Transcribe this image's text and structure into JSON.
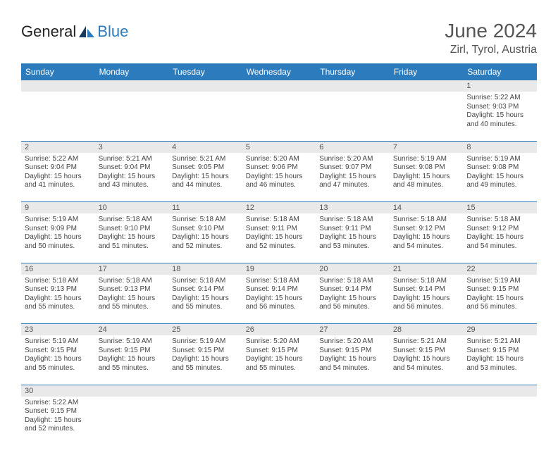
{
  "logo": {
    "text_dark": "General",
    "text_blue": "Blue"
  },
  "title": "June 2024",
  "location": "Zirl, Tyrol, Austria",
  "colors": {
    "header_bg": "#2b7bbd",
    "header_text": "#ffffff",
    "daynum_bg": "#e9e9e9",
    "cell_border": "#2b7bbd",
    "page_bg": "#ffffff",
    "body_text": "#444444",
    "title_text": "#555555"
  },
  "weekdays": [
    "Sunday",
    "Monday",
    "Tuesday",
    "Wednesday",
    "Thursday",
    "Friday",
    "Saturday"
  ],
  "weeks": [
    {
      "nums": [
        "",
        "",
        "",
        "",
        "",
        "",
        "1"
      ],
      "cells": [
        null,
        null,
        null,
        null,
        null,
        null,
        {
          "sunrise": "Sunrise: 5:22 AM",
          "sunset": "Sunset: 9:03 PM",
          "daylight1": "Daylight: 15 hours",
          "daylight2": "and 40 minutes."
        }
      ]
    },
    {
      "nums": [
        "2",
        "3",
        "4",
        "5",
        "6",
        "7",
        "8"
      ],
      "cells": [
        {
          "sunrise": "Sunrise: 5:22 AM",
          "sunset": "Sunset: 9:04 PM",
          "daylight1": "Daylight: 15 hours",
          "daylight2": "and 41 minutes."
        },
        {
          "sunrise": "Sunrise: 5:21 AM",
          "sunset": "Sunset: 9:04 PM",
          "daylight1": "Daylight: 15 hours",
          "daylight2": "and 43 minutes."
        },
        {
          "sunrise": "Sunrise: 5:21 AM",
          "sunset": "Sunset: 9:05 PM",
          "daylight1": "Daylight: 15 hours",
          "daylight2": "and 44 minutes."
        },
        {
          "sunrise": "Sunrise: 5:20 AM",
          "sunset": "Sunset: 9:06 PM",
          "daylight1": "Daylight: 15 hours",
          "daylight2": "and 46 minutes."
        },
        {
          "sunrise": "Sunrise: 5:20 AM",
          "sunset": "Sunset: 9:07 PM",
          "daylight1": "Daylight: 15 hours",
          "daylight2": "and 47 minutes."
        },
        {
          "sunrise": "Sunrise: 5:19 AM",
          "sunset": "Sunset: 9:08 PM",
          "daylight1": "Daylight: 15 hours",
          "daylight2": "and 48 minutes."
        },
        {
          "sunrise": "Sunrise: 5:19 AM",
          "sunset": "Sunset: 9:08 PM",
          "daylight1": "Daylight: 15 hours",
          "daylight2": "and 49 minutes."
        }
      ]
    },
    {
      "nums": [
        "9",
        "10",
        "11",
        "12",
        "13",
        "14",
        "15"
      ],
      "cells": [
        {
          "sunrise": "Sunrise: 5:19 AM",
          "sunset": "Sunset: 9:09 PM",
          "daylight1": "Daylight: 15 hours",
          "daylight2": "and 50 minutes."
        },
        {
          "sunrise": "Sunrise: 5:18 AM",
          "sunset": "Sunset: 9:10 PM",
          "daylight1": "Daylight: 15 hours",
          "daylight2": "and 51 minutes."
        },
        {
          "sunrise": "Sunrise: 5:18 AM",
          "sunset": "Sunset: 9:10 PM",
          "daylight1": "Daylight: 15 hours",
          "daylight2": "and 52 minutes."
        },
        {
          "sunrise": "Sunrise: 5:18 AM",
          "sunset": "Sunset: 9:11 PM",
          "daylight1": "Daylight: 15 hours",
          "daylight2": "and 52 minutes."
        },
        {
          "sunrise": "Sunrise: 5:18 AM",
          "sunset": "Sunset: 9:11 PM",
          "daylight1": "Daylight: 15 hours",
          "daylight2": "and 53 minutes."
        },
        {
          "sunrise": "Sunrise: 5:18 AM",
          "sunset": "Sunset: 9:12 PM",
          "daylight1": "Daylight: 15 hours",
          "daylight2": "and 54 minutes."
        },
        {
          "sunrise": "Sunrise: 5:18 AM",
          "sunset": "Sunset: 9:12 PM",
          "daylight1": "Daylight: 15 hours",
          "daylight2": "and 54 minutes."
        }
      ]
    },
    {
      "nums": [
        "16",
        "17",
        "18",
        "19",
        "20",
        "21",
        "22"
      ],
      "cells": [
        {
          "sunrise": "Sunrise: 5:18 AM",
          "sunset": "Sunset: 9:13 PM",
          "daylight1": "Daylight: 15 hours",
          "daylight2": "and 55 minutes."
        },
        {
          "sunrise": "Sunrise: 5:18 AM",
          "sunset": "Sunset: 9:13 PM",
          "daylight1": "Daylight: 15 hours",
          "daylight2": "and 55 minutes."
        },
        {
          "sunrise": "Sunrise: 5:18 AM",
          "sunset": "Sunset: 9:14 PM",
          "daylight1": "Daylight: 15 hours",
          "daylight2": "and 55 minutes."
        },
        {
          "sunrise": "Sunrise: 5:18 AM",
          "sunset": "Sunset: 9:14 PM",
          "daylight1": "Daylight: 15 hours",
          "daylight2": "and 56 minutes."
        },
        {
          "sunrise": "Sunrise: 5:18 AM",
          "sunset": "Sunset: 9:14 PM",
          "daylight1": "Daylight: 15 hours",
          "daylight2": "and 56 minutes."
        },
        {
          "sunrise": "Sunrise: 5:18 AM",
          "sunset": "Sunset: 9:14 PM",
          "daylight1": "Daylight: 15 hours",
          "daylight2": "and 56 minutes."
        },
        {
          "sunrise": "Sunrise: 5:19 AM",
          "sunset": "Sunset: 9:15 PM",
          "daylight1": "Daylight: 15 hours",
          "daylight2": "and 56 minutes."
        }
      ]
    },
    {
      "nums": [
        "23",
        "24",
        "25",
        "26",
        "27",
        "28",
        "29"
      ],
      "cells": [
        {
          "sunrise": "Sunrise: 5:19 AM",
          "sunset": "Sunset: 9:15 PM",
          "daylight1": "Daylight: 15 hours",
          "daylight2": "and 55 minutes."
        },
        {
          "sunrise": "Sunrise: 5:19 AM",
          "sunset": "Sunset: 9:15 PM",
          "daylight1": "Daylight: 15 hours",
          "daylight2": "and 55 minutes."
        },
        {
          "sunrise": "Sunrise: 5:19 AM",
          "sunset": "Sunset: 9:15 PM",
          "daylight1": "Daylight: 15 hours",
          "daylight2": "and 55 minutes."
        },
        {
          "sunrise": "Sunrise: 5:20 AM",
          "sunset": "Sunset: 9:15 PM",
          "daylight1": "Daylight: 15 hours",
          "daylight2": "and 55 minutes."
        },
        {
          "sunrise": "Sunrise: 5:20 AM",
          "sunset": "Sunset: 9:15 PM",
          "daylight1": "Daylight: 15 hours",
          "daylight2": "and 54 minutes."
        },
        {
          "sunrise": "Sunrise: 5:21 AM",
          "sunset": "Sunset: 9:15 PM",
          "daylight1": "Daylight: 15 hours",
          "daylight2": "and 54 minutes."
        },
        {
          "sunrise": "Sunrise: 5:21 AM",
          "sunset": "Sunset: 9:15 PM",
          "daylight1": "Daylight: 15 hours",
          "daylight2": "and 53 minutes."
        }
      ]
    },
    {
      "nums": [
        "30",
        "",
        "",
        "",
        "",
        "",
        ""
      ],
      "cells": [
        {
          "sunrise": "Sunrise: 5:22 AM",
          "sunset": "Sunset: 9:15 PM",
          "daylight1": "Daylight: 15 hours",
          "daylight2": "and 52 minutes."
        },
        null,
        null,
        null,
        null,
        null,
        null
      ]
    }
  ]
}
